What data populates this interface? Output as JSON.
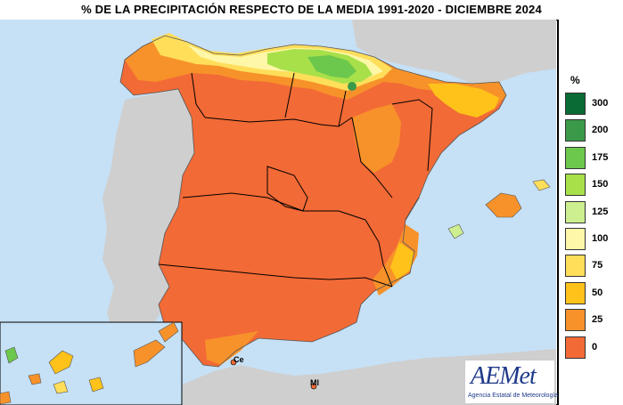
{
  "title": "% DE LA PRECIPITACIÓN RESPECTO DE LA MEDIA 1991-2020 - DICIEMBRE 2024",
  "legend": {
    "unit": "%",
    "items": [
      {
        "label": "300",
        "color": "#0b6b35"
      },
      {
        "label": "200",
        "color": "#3a9a4a"
      },
      {
        "label": "175",
        "color": "#6cc84c"
      },
      {
        "label": "150",
        "color": "#a8e04a"
      },
      {
        "label": "125",
        "color": "#cdef8f"
      },
      {
        "label": "100",
        "color": "#fff7a8"
      },
      {
        "label": "75",
        "color": "#ffde5a"
      },
      {
        "label": "50",
        "color": "#ffc21a"
      },
      {
        "label": "25",
        "color": "#f7922a"
      },
      {
        "label": "0",
        "color": "#f26a36"
      }
    ]
  },
  "places": {
    "ceuta": "Ce",
    "melilla": "Ml"
  },
  "logo": {
    "name": "AEMet",
    "subtitle": "Agencia Estatal de Meteorología"
  },
  "colors": {
    "sea": "#c6e0f5",
    "land_other": "#cfcfcf",
    "border": "#000000"
  }
}
